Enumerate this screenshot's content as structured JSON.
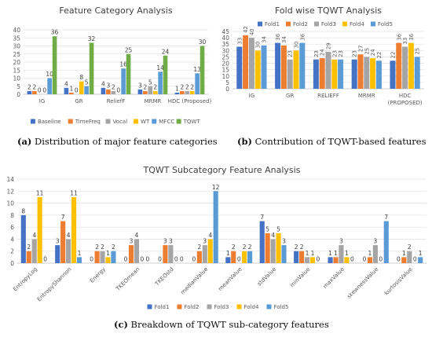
{
  "captions": {
    "a_tag": "(a)",
    "a_text": "Distribution of major feature categories",
    "b_tag": "(b)",
    "b_text": "Contribution of TQWT-based features",
    "c_tag": "(c)",
    "c_text": "Breakdown of TQWT sub-category features"
  },
  "colors": {
    "Baseline": "#4472c4",
    "TimeFreq": "#ed7d31",
    "Vocal": "#a5a5a5",
    "WT": "#ffc000",
    "MFCC": "#5b9bd5",
    "TQWT": "#70ad47",
    "Fold1": "#4472c4",
    "Fold2": "#ed7d31",
    "Fold3": "#a5a5a5",
    "Fold4": "#ffc000",
    "Fold5": "#5b9bd5"
  },
  "chart_data": [
    {
      "type": "bar",
      "title": "Feature Category Analysis",
      "categories": [
        "IG",
        "GR",
        "ReliefF",
        "MRMR",
        "HDC (Proposed)"
      ],
      "ylim": [
        0,
        40
      ],
      "yticks": [
        0,
        5,
        10,
        15,
        20,
        25,
        30,
        35,
        40
      ],
      "grid": true,
      "legend": "bottom",
      "series": [
        {
          "name": "Baseline",
          "values": [
            2,
            4,
            4,
            3,
            1
          ]
        },
        {
          "name": "TimeFreq",
          "values": [
            2,
            1,
            3,
            2,
            2
          ]
        },
        {
          "name": "Vocal",
          "values": [
            0,
            0,
            2,
            5,
            2
          ]
        },
        {
          "name": "WT",
          "values": [
            0,
            8,
            0,
            2,
            2
          ]
        },
        {
          "name": "MFCC",
          "values": [
            10,
            5,
            16,
            14,
            13
          ]
        },
        {
          "name": "TQWT",
          "values": [
            36,
            32,
            25,
            24,
            30
          ]
        }
      ]
    },
    {
      "type": "bar",
      "title": "Fold wise TQWT Analysis",
      "categories": [
        "IG",
        "GR",
        "RELIEFF",
        "MRMR",
        "HDC (PROPOSED)"
      ],
      "ylim": [
        0,
        45
      ],
      "yticks": [
        0,
        5,
        10,
        15,
        20,
        25,
        30,
        35,
        40,
        45
      ],
      "grid": true,
      "legend": "top",
      "series": [
        {
          "name": "Fold1",
          "values": [
            33,
            36,
            23,
            23,
            22
          ]
        },
        {
          "name": "Fold2",
          "values": [
            42,
            34,
            24,
            27,
            36
          ]
        },
        {
          "name": "Fold3",
          "values": [
            40,
            23,
            29,
            25,
            33
          ]
        },
        {
          "name": "Fold4",
          "values": [
            30,
            30,
            23,
            24,
            36
          ]
        },
        {
          "name": "Fold5",
          "values": [
            34,
            36,
            23,
            22,
            25
          ]
        }
      ]
    },
    {
      "type": "bar",
      "title": "TQWT Subcategory Feature Analysis",
      "categories": [
        "EntropyLog",
        "EntropyShannon",
        "Energy",
        "TKEOmean",
        "TKEOstd",
        "medianValue",
        "meanValue",
        "stdValue",
        "minValue",
        "maxValue",
        "skewnessValue",
        "kurtosisValue"
      ],
      "ylim": [
        0,
        14
      ],
      "yticks": [
        0,
        2,
        4,
        6,
        8,
        10,
        12,
        14
      ],
      "grid": true,
      "legend": "bottom",
      "series": [
        {
          "name": "Fold1",
          "values": [
            8,
            3,
            0,
            0,
            0,
            0,
            1,
            7,
            2,
            1,
            0,
            0
          ]
        },
        {
          "name": "Fold2",
          "values": [
            2,
            7,
            2,
            3,
            3,
            2,
            2,
            5,
            2,
            1,
            1,
            1
          ]
        },
        {
          "name": "Fold3",
          "values": [
            4,
            4,
            2,
            4,
            3,
            3,
            0,
            4,
            1,
            3,
            3,
            2
          ]
        },
        {
          "name": "Fold4",
          "values": [
            11,
            11,
            1,
            0,
            0,
            4,
            2,
            5,
            1,
            1,
            0,
            0
          ]
        },
        {
          "name": "Fold5",
          "values": [
            0,
            1,
            2,
            0,
            0,
            12,
            2,
            3,
            0,
            0,
            7,
            1
          ]
        }
      ]
    }
  ]
}
